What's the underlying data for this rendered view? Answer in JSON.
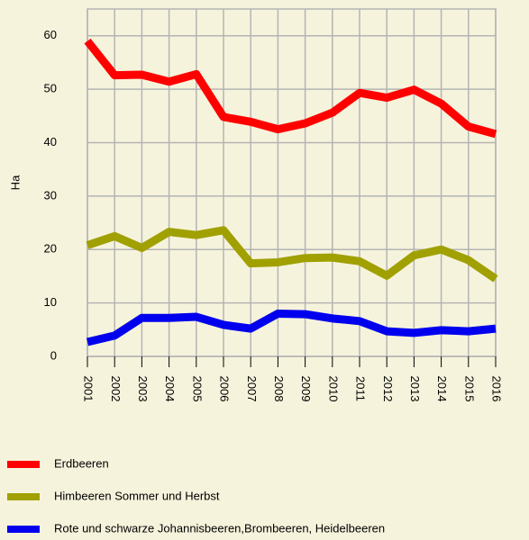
{
  "chart_data": {
    "type": "line",
    "ylabel": "Ha",
    "categories": [
      "2001",
      "2002",
      "2003",
      "2004",
      "2005",
      "2006",
      "2007",
      "2008",
      "2009",
      "2010",
      "2011",
      "2012",
      "2013",
      "2014",
      "2015",
      "2016"
    ],
    "series": [
      {
        "name": "Erdbeeren",
        "color": "#ff0000",
        "values": [
          59,
          52.6,
          52.7,
          51.4,
          52.8,
          44.8,
          43.9,
          42.5,
          43.6,
          45.6,
          49.3,
          48.4,
          49.9,
          47.3,
          43,
          41.6
        ]
      },
      {
        "name": "Himbeeren Sommer und Herbst",
        "color": "#a0a000",
        "values": [
          20.8,
          22.5,
          20.3,
          23.3,
          22.7,
          23.6,
          17.4,
          17.6,
          18.4,
          18.5,
          17.8,
          15.1,
          18.9,
          20,
          18,
          14.5
        ]
      },
      {
        "name": "Rote und schwarze Johannisbeeren,Brombeeren, Heidelbeeren",
        "color": "#0000ee",
        "values": [
          2.7,
          3.9,
          7.2,
          7.2,
          7.4,
          5.9,
          5.2,
          8,
          7.9,
          7.1,
          6.6,
          4.7,
          4.4,
          4.9,
          4.7,
          5.2
        ]
      }
    ],
    "ylim": [
      0,
      65
    ],
    "yticks": [
      0,
      10,
      20,
      30,
      40,
      50,
      60
    ],
    "grid": true
  }
}
